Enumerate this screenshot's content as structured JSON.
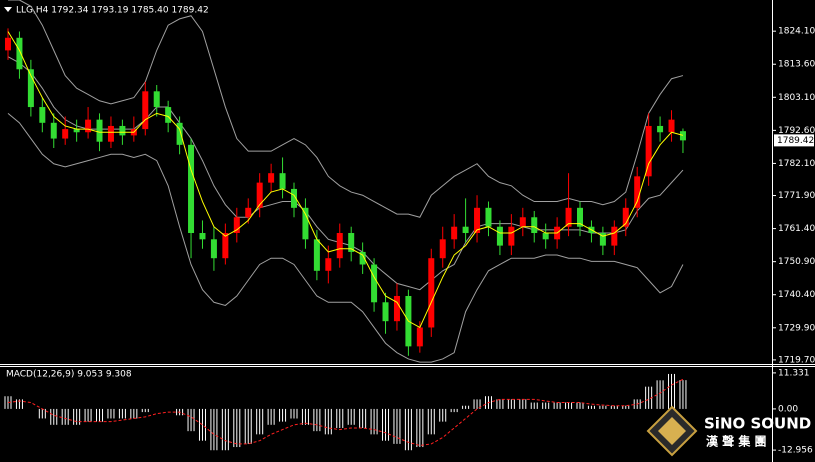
{
  "chart_data": {
    "type": "candlestick",
    "title": "LLG,H4  1792.34 1793.19 1785.40 1789.42",
    "up_color": "#ff0000",
    "down_color": "#33dd33",
    "open": [
      1818,
      1822,
      1812,
      1800,
      1795,
      1790,
      1793,
      1792,
      1796,
      1789,
      1794,
      1791,
      1793,
      1805,
      1800,
      1795,
      1788,
      1760,
      1758,
      1752,
      1760,
      1765,
      1768,
      1776,
      1779,
      1774,
      1768,
      1758,
      1748,
      1752,
      1760,
      1754,
      1750,
      1738,
      1732,
      1740,
      1724,
      1730,
      1752,
      1758,
      1762,
      1760,
      1768,
      1762,
      1756,
      1762,
      1765,
      1760,
      1758,
      1762,
      1768,
      1762,
      1760,
      1756,
      1762,
      1768,
      1778,
      1794,
      1792,
      1792.34
    ],
    "high": [
      1825,
      1824,
      1815,
      1803,
      1798,
      1797,
      1796,
      1800,
      1798,
      1797,
      1796,
      1797,
      1808,
      1807,
      1802,
      1797,
      1790,
      1764,
      1762,
      1763,
      1768,
      1771,
      1779,
      1782,
      1784,
      1776,
      1771,
      1761,
      1756,
      1763,
      1762,
      1757,
      1752,
      1741,
      1744,
      1742,
      1732,
      1755,
      1762,
      1766,
      1771,
      1772,
      1770,
      1764,
      1766,
      1768,
      1767,
      1763,
      1765,
      1779,
      1770,
      1764,
      1762,
      1764,
      1771,
      1781,
      1798,
      1797,
      1799,
      1793.19
    ],
    "low": [
      1815,
      1809,
      1797,
      1792,
      1787,
      1788,
      1789,
      1790,
      1786,
      1787,
      1788,
      1789,
      1791,
      1797,
      1792,
      1785,
      1752,
      1755,
      1748,
      1750,
      1757,
      1763,
      1765,
      1773,
      1771,
      1765,
      1755,
      1745,
      1744,
      1749,
      1751,
      1747,
      1735,
      1728,
      1729,
      1721,
      1722,
      1727,
      1749,
      1755,
      1757,
      1757,
      1759,
      1753,
      1753,
      1759,
      1757,
      1755,
      1755,
      1759,
      1759,
      1757,
      1753,
      1753,
      1759,
      1765,
      1775,
      1789,
      1789,
      1785.4
    ],
    "close": [
      1822,
      1812,
      1800,
      1795,
      1790,
      1793,
      1792,
      1796,
      1789,
      1794,
      1791,
      1793,
      1805,
      1800,
      1795,
      1788,
      1760,
      1758,
      1752,
      1760,
      1765,
      1768,
      1776,
      1779,
      1774,
      1768,
      1758,
      1748,
      1752,
      1760,
      1754,
      1750,
      1738,
      1732,
      1740,
      1724,
      1730,
      1752,
      1758,
      1762,
      1760,
      1768,
      1762,
      1756,
      1762,
      1765,
      1760,
      1758,
      1762,
      1768,
      1762,
      1760,
      1756,
      1762,
      1768,
      1778,
      1794,
      1792,
      1796,
      1789.42
    ],
    "band_color": "#a0a0a0",
    "upper": [
      1834,
      1834,
      1832,
      1826,
      1818,
      1810,
      1806,
      1804,
      1802,
      1801,
      1802,
      1803,
      1808,
      1818,
      1826,
      1828,
      1829,
      1824,
      1812,
      1800,
      1790,
      1786,
      1786,
      1786,
      1788,
      1790,
      1788,
      1784,
      1778,
      1775,
      1773,
      1772,
      1770,
      1768,
      1766,
      1766,
      1765,
      1772,
      1775,
      1778,
      1780,
      1782,
      1778,
      1776,
      1775,
      1772,
      1770,
      1770,
      1770,
      1771,
      1770,
      1770,
      1769,
      1770,
      1773,
      1785,
      1798,
      1804,
      1809,
      1810
    ],
    "middle": [
      1816,
      1814,
      1811,
      1806,
      1800,
      1796,
      1794,
      1793,
      1793,
      1793,
      1793,
      1793,
      1796,
      1800,
      1800,
      1795,
      1790,
      1783,
      1775,
      1769,
      1765,
      1765,
      1768,
      1769,
      1770,
      1770,
      1767,
      1762,
      1758,
      1757,
      1756,
      1754,
      1750,
      1747,
      1744,
      1743,
      1742,
      1745,
      1748,
      1750,
      1757,
      1762,
      1763,
      1763,
      1763,
      1762,
      1761,
      1761,
      1761,
      1761,
      1761,
      1760,
      1760,
      1760,
      1761,
      1767,
      1771,
      1772,
      1776,
      1780
    ],
    "lower": [
      1798,
      1795,
      1790,
      1785,
      1782,
      1781,
      1782,
      1783,
      1784,
      1785,
      1785,
      1784,
      1785,
      1783,
      1775,
      1762,
      1750,
      1742,
      1738,
      1737,
      1740,
      1745,
      1750,
      1752,
      1752,
      1750,
      1745,
      1740,
      1738,
      1738,
      1738,
      1735,
      1730,
      1725,
      1722,
      1720,
      1719,
      1719,
      1720,
      1722,
      1735,
      1742,
      1748,
      1750,
      1752,
      1752,
      1752,
      1753,
      1753,
      1752,
      1752,
      1751,
      1751,
      1751,
      1750,
      1749,
      1745,
      1741,
      1743,
      1750
    ],
    "ma_color": "#ffff00",
    "ma": [
      1824,
      1818,
      1810,
      1803,
      1797,
      1794,
      1793,
      1793,
      1792,
      1792,
      1792,
      1792,
      1796,
      1798,
      1797,
      1793,
      1780,
      1770,
      1762,
      1759,
      1761,
      1764,
      1769,
      1773,
      1774,
      1772,
      1766,
      1758,
      1754,
      1755,
      1755,
      1753,
      1746,
      1740,
      1738,
      1732,
      1730,
      1738,
      1746,
      1753,
      1756,
      1761,
      1762,
      1760,
      1760,
      1762,
      1762,
      1760,
      1760,
      1763,
      1763,
      1761,
      1759,
      1760,
      1763,
      1770,
      1782,
      1788,
      1792,
      1791
    ],
    "ylim": [
      1718.4,
      1834.0
    ],
    "yticks": [
      {
        "value": 1824.1,
        "label": "1824.10"
      },
      {
        "value": 1813.6,
        "label": "1813.60"
      },
      {
        "value": 1803.1,
        "label": "1803.10"
      },
      {
        "value": 1792.6,
        "label": "1792.60"
      },
      {
        "value": 1782.1,
        "label": "1782.10"
      },
      {
        "value": 1771.9,
        "label": "1771.90"
      },
      {
        "value": 1761.4,
        "label": "1761.40"
      },
      {
        "value": 1750.9,
        "label": "1750.90"
      },
      {
        "value": 1740.4,
        "label": "1740.40"
      },
      {
        "value": 1729.9,
        "label": "1729.90"
      },
      {
        "value": 1719.7,
        "label": "1719.70"
      }
    ],
    "macd": {
      "title": "MACD(12,26,9) 9.053 9.308",
      "hist_color": "#ffffff",
      "signal_color": "#ff2020",
      "histogram": [
        4,
        3,
        0,
        -3,
        -5,
        -5,
        -5,
        -4,
        -4,
        -3,
        -3,
        -3,
        -1,
        0,
        0,
        -2,
        -7,
        -10,
        -13,
        -13,
        -12,
        -11,
        -8,
        -5,
        -4,
        -3,
        -5,
        -7,
        -8,
        -6,
        -5,
        -6,
        -8,
        -10,
        -11,
        -13,
        -12,
        -8,
        -4,
        -1,
        1,
        3,
        4,
        3,
        3,
        3,
        2,
        2,
        2,
        2,
        2,
        1,
        1,
        1,
        1,
        3,
        7,
        9,
        11,
        9.053
      ],
      "signal": [
        2,
        2.5,
        2,
        0,
        -2,
        -3,
        -4,
        -4,
        -4,
        -4,
        -3.5,
        -3,
        -2.5,
        -1.5,
        -1,
        -1,
        -2.5,
        -5,
        -8,
        -10,
        -11,
        -11,
        -10,
        -8,
        -6.5,
        -5,
        -4.5,
        -5,
        -6,
        -6.5,
        -6,
        -6,
        -6.5,
        -7.5,
        -9,
        -10.5,
        -11.5,
        -11,
        -9,
        -6,
        -3,
        0,
        2,
        3,
        3,
        3,
        3,
        2.5,
        2,
        2,
        2,
        1.5,
        1.2,
        1,
        1,
        1.5,
        3,
        5,
        7.5,
        9.308
      ],
      "ylim": [
        -16.7,
        13.5
      ],
      "yticks": [
        11.331,
        {
          "value": 0,
          "label": "0.00"
        },
        -12.956
      ]
    }
  },
  "logo": {
    "name": "SiNO SOUND",
    "subtitle": "漢 聲 集 團"
  }
}
